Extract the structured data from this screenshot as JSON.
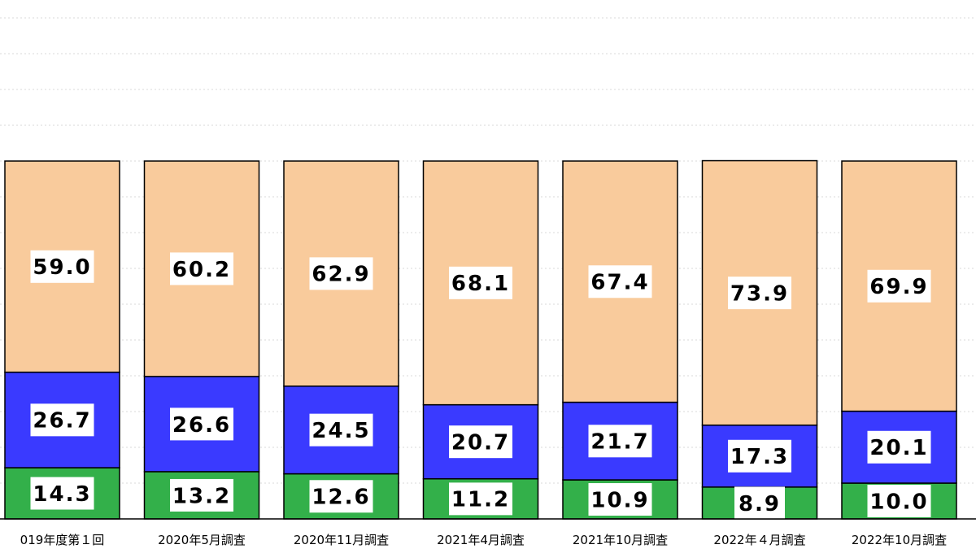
{
  "chart_data": {
    "type": "bar",
    "stacked": true,
    "orientation": "vertical",
    "categories": [
      "019年度第１回",
      "2020年5月調査",
      "2020年11月調査",
      "2021年4月調査",
      "2021年10月調査",
      "2022年４月調査",
      "2022年10月調査"
    ],
    "series": [
      {
        "values": [
          14.3,
          13.2,
          12.6,
          11.2,
          10.9,
          8.9,
          10.0
        ],
        "labels": [
          "14.3",
          "13.2",
          "12.6",
          "11.2",
          "10.9",
          "8.9",
          "10.0"
        ],
        "color": "#33b04a"
      },
      {
        "values": [
          26.7,
          26.6,
          24.5,
          20.7,
          21.7,
          17.3,
          20.1
        ],
        "labels": [
          "26.7",
          "26.6",
          "24.5",
          "20.7",
          "21.7",
          "17.3",
          "20.1"
        ],
        "color": "#3a3aff"
      },
      {
        "values": [
          59.0,
          60.2,
          62.9,
          68.1,
          67.4,
          73.9,
          69.9
        ],
        "labels": [
          "59.0",
          "60.2",
          "62.9",
          "68.1",
          "67.4",
          "73.9",
          "69.9"
        ],
        "color": "#f9cb9c"
      }
    ],
    "grid": true,
    "legend": "none"
  }
}
